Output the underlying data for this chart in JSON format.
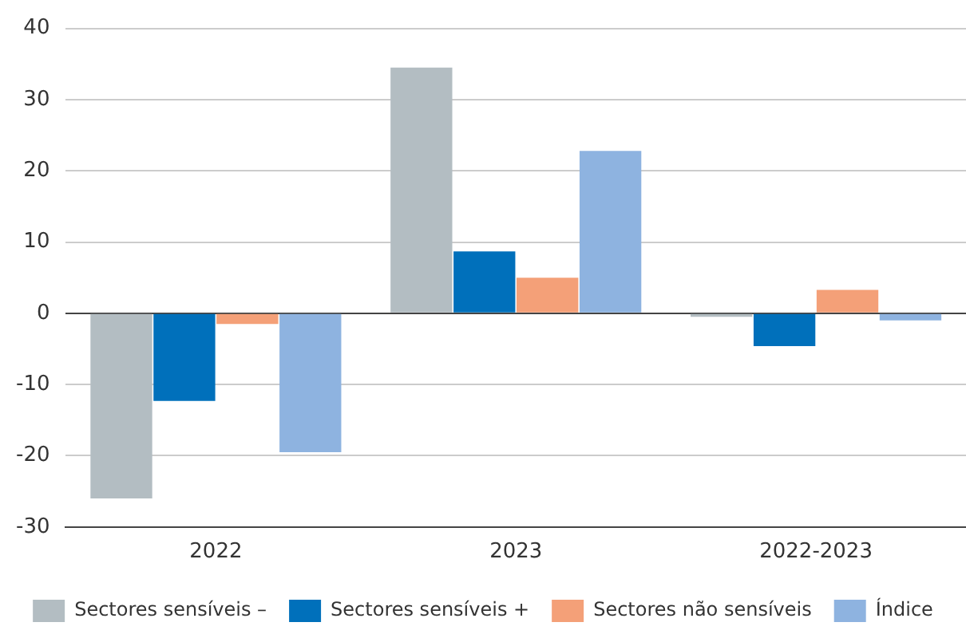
{
  "chart_data": {
    "type": "bar",
    "categories": [
      "2022",
      "2023",
      "2022-2023"
    ],
    "series": [
      {
        "name": "Sectores sensíveis –",
        "color": "#b3bdc2",
        "values": [
          -26,
          34.5,
          -0.5
        ]
      },
      {
        "name": "Sectores sensíveis +",
        "color": "#0070bb",
        "values": [
          -12.3,
          8.7,
          -4.6
        ]
      },
      {
        "name": "Sectores não sensíveis",
        "color": "#f4a078",
        "values": [
          -1.5,
          5,
          3.3
        ]
      },
      {
        "name": "Índice",
        "color": "#8eb3e0",
        "values": [
          -19.5,
          22.8,
          -1
        ]
      }
    ],
    "ylim": [
      -30,
      40
    ],
    "yticks": [
      -30,
      -20,
      -10,
      0,
      10,
      20,
      30,
      40
    ],
    "grid": "y",
    "legend": "bottom"
  }
}
